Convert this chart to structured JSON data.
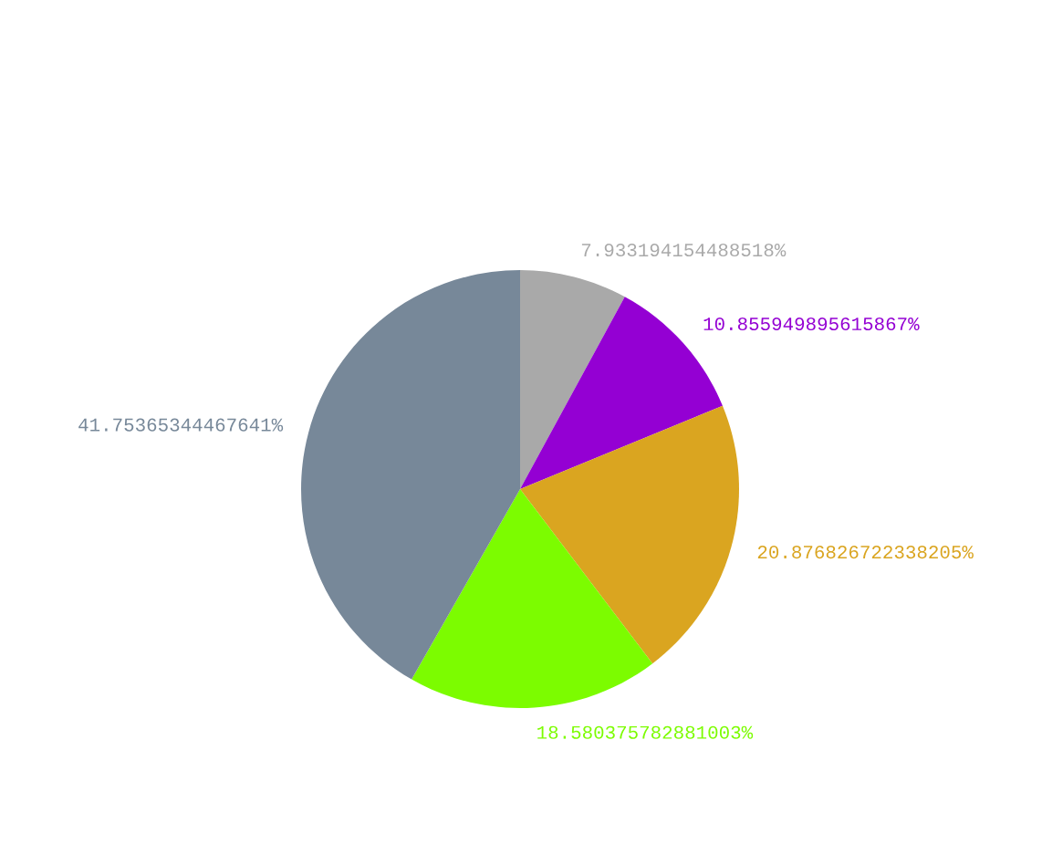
{
  "chart_data": {
    "type": "pie",
    "categories": [
      null,
      null,
      null,
      null,
      null
    ],
    "values": [
      7.933194154488518,
      10.855949895615867,
      20.876826722338205,
      18.580375782881003,
      41.75365344467641
    ],
    "value_labels": [
      "7.933194154488518%",
      "10.855949895615867%",
      "20.876826722338205%",
      "18.580375782881003%",
      "41.75365344467641%"
    ],
    "colors": [
      "#a9a9a9",
      "#9400d3",
      "#daa520",
      "#7cfc00",
      "#778899"
    ]
  }
}
